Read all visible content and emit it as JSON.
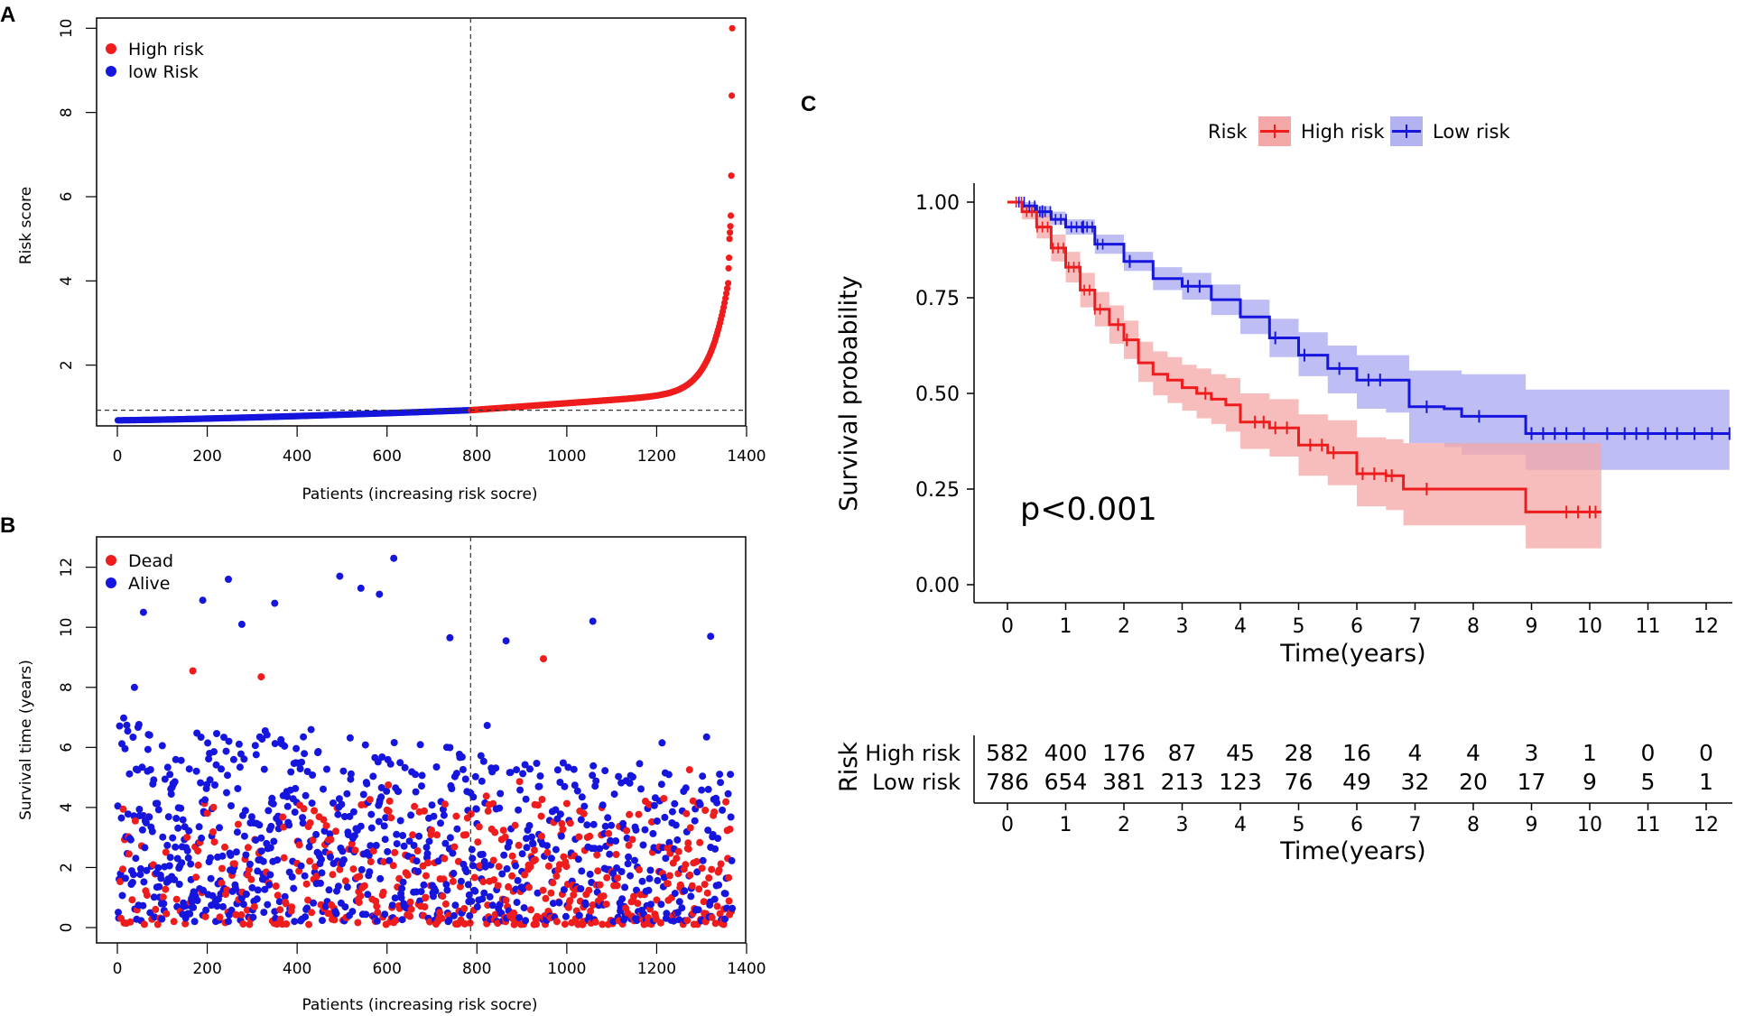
{
  "colors": {
    "high": "#ee1c1c",
    "low": "#1515dd",
    "high_band": "#f4a7a7",
    "low_band": "#b3b3f2"
  },
  "chart_data": [
    {
      "panel": "A",
      "type": "scatter",
      "xlabel": "Patients (increasing risk socre)",
      "ylabel": "Risk score",
      "xlim": [
        0,
        1400
      ],
      "ylim": [
        0.6,
        10.2
      ],
      "xticks": [
        "0",
        "200",
        "400",
        "600",
        "800",
        "1000",
        "1200",
        "1400"
      ],
      "yticks": [
        "2",
        "4",
        "6",
        "8",
        "10"
      ],
      "cutoff_x": 786,
      "cutoff_y": 0.93,
      "legend_position": "top-left",
      "legend": [
        "High risk",
        "low Risk"
      ],
      "series": [
        {
          "name": "low Risk",
          "n": 786,
          "range": [
            0.69,
            0.93
          ]
        },
        {
          "name": "High risk",
          "n": 582,
          "range": [
            0.93,
            10.0
          ]
        }
      ],
      "top_values": [
        10.0,
        8.4,
        6.5,
        5.55,
        5.3,
        5.15,
        5.0,
        4.55,
        4.3
      ]
    },
    {
      "panel": "B",
      "type": "scatter",
      "xlabel": "Patients (increasing risk socre)",
      "ylabel": "Survival time (years)",
      "xlim": [
        0,
        1400
      ],
      "ylim": [
        0,
        12.5
      ],
      "xticks": [
        "0",
        "200",
        "400",
        "600",
        "800",
        "1000",
        "1200",
        "1400"
      ],
      "yticks": [
        "0",
        "2",
        "4",
        "6",
        "8",
        "10",
        "12"
      ],
      "cutoff_x": 786,
      "legend_position": "top-left",
      "legend": [
        "Dead",
        "Alive"
      ],
      "n_patients": 1368,
      "notable_points": [
        {
          "x": 615,
          "y": 12.3,
          "status": "Alive"
        },
        {
          "x": 495,
          "y": 11.7,
          "status": "Alive"
        },
        {
          "x": 247,
          "y": 11.6,
          "status": "Alive"
        },
        {
          "x": 542,
          "y": 11.3,
          "status": "Alive"
        },
        {
          "x": 583,
          "y": 11.1,
          "status": "Alive"
        },
        {
          "x": 190,
          "y": 10.9,
          "status": "Alive"
        },
        {
          "x": 350,
          "y": 10.8,
          "status": "Alive"
        },
        {
          "x": 58,
          "y": 10.5,
          "status": "Alive"
        },
        {
          "x": 1058,
          "y": 10.2,
          "status": "Alive"
        },
        {
          "x": 277,
          "y": 10.1,
          "status": "Alive"
        },
        {
          "x": 948,
          "y": 8.95,
          "status": "Dead"
        },
        {
          "x": 320,
          "y": 8.35,
          "status": "Dead"
        },
        {
          "x": 168,
          "y": 8.55,
          "status": "Dead"
        },
        {
          "x": 1320,
          "y": 9.7,
          "status": "Alive"
        },
        {
          "x": 740,
          "y": 9.65,
          "status": "Alive"
        },
        {
          "x": 865,
          "y": 9.55,
          "status": "Alive"
        }
      ]
    },
    {
      "panel": "C",
      "type": "line",
      "subtype": "kaplan-meier",
      "title": "",
      "xlabel": "Time(years)",
      "ylabel": "Survival probability",
      "xlim": [
        0,
        12.5
      ],
      "ylim": [
        0,
        1
      ],
      "xticks": [
        "0",
        "1",
        "2",
        "3",
        "4",
        "5",
        "6",
        "7",
        "8",
        "9",
        "10",
        "11",
        "12"
      ],
      "yticks": [
        "0.00",
        "0.25",
        "0.50",
        "0.75",
        "1.00"
      ],
      "legend_title": "Risk",
      "legend_position": "top",
      "annotation": "p<0.001",
      "series": [
        {
          "name": "High risk",
          "x": [
            0,
            0.25,
            0.5,
            0.75,
            1,
            1.25,
            1.5,
            1.75,
            2,
            2.25,
            2.5,
            2.75,
            3,
            3.25,
            3.5,
            3.75,
            4,
            4.5,
            5,
            5.5,
            6,
            6.5,
            6.8,
            7,
            7.5,
            8,
            8.5,
            8.9,
            9.5,
            10,
            10.2
          ],
          "y": [
            1.0,
            0.975,
            0.935,
            0.88,
            0.83,
            0.77,
            0.72,
            0.68,
            0.64,
            0.58,
            0.55,
            0.535,
            0.515,
            0.5,
            0.485,
            0.47,
            0.425,
            0.41,
            0.365,
            0.345,
            0.29,
            0.285,
            0.25,
            0.25,
            0.25,
            0.25,
            0.25,
            0.19,
            0.19,
            0.19,
            0.19
          ],
          "lower": [
            1.0,
            0.955,
            0.905,
            0.845,
            0.79,
            0.725,
            0.675,
            0.63,
            0.59,
            0.53,
            0.495,
            0.475,
            0.455,
            0.435,
            0.42,
            0.4,
            0.355,
            0.335,
            0.285,
            0.26,
            0.205,
            0.195,
            0.155,
            0.155,
            0.155,
            0.155,
            0.155,
            0.095,
            0.095,
            0.095,
            0.095
          ],
          "upper": [
            1.0,
            0.99,
            0.965,
            0.915,
            0.87,
            0.815,
            0.765,
            0.73,
            0.69,
            0.635,
            0.61,
            0.595,
            0.575,
            0.565,
            0.55,
            0.54,
            0.5,
            0.485,
            0.445,
            0.43,
            0.385,
            0.38,
            0.37,
            0.37,
            0.37,
            0.37,
            0.37,
            0.37,
            0.37,
            0.37,
            0.37
          ]
        },
        {
          "name": "Low risk",
          "x": [
            0,
            0.25,
            0.5,
            0.75,
            1,
            1.5,
            2,
            2.5,
            3,
            3.5,
            4,
            4.5,
            5,
            5.5,
            6,
            6.5,
            6.9,
            7.5,
            7.8,
            8.5,
            8.9,
            9.5,
            10,
            11,
            12,
            12.4
          ],
          "y": [
            1.0,
            0.99,
            0.975,
            0.955,
            0.935,
            0.89,
            0.845,
            0.8,
            0.78,
            0.745,
            0.7,
            0.645,
            0.6,
            0.565,
            0.535,
            0.535,
            0.465,
            0.46,
            0.44,
            0.44,
            0.395,
            0.395,
            0.395,
            0.395,
            0.395,
            0.395
          ],
          "lower": [
            1.0,
            0.98,
            0.96,
            0.94,
            0.915,
            0.865,
            0.82,
            0.77,
            0.745,
            0.705,
            0.655,
            0.595,
            0.545,
            0.5,
            0.46,
            0.45,
            0.37,
            0.36,
            0.34,
            0.34,
            0.3,
            0.3,
            0.3,
            0.3,
            0.3,
            0.3
          ],
          "upper": [
            1.0,
            1.0,
            0.99,
            0.975,
            0.955,
            0.915,
            0.87,
            0.83,
            0.815,
            0.785,
            0.745,
            0.695,
            0.66,
            0.625,
            0.6,
            0.6,
            0.56,
            0.56,
            0.55,
            0.55,
            0.51,
            0.51,
            0.51,
            0.51,
            0.51,
            0.51
          ]
        }
      ],
      "censor_marks": {
        "High risk": [
          1.9,
          2.05,
          3.4,
          4.25,
          4.4,
          4.6,
          4.8,
          5.2,
          5.4,
          5.6,
          6.1,
          6.3,
          6.5,
          6.6,
          7.2,
          9.6,
          9.8,
          10.0,
          10.1
        ],
        "Low risk": [
          0.6,
          1.3,
          2.1,
          3.1,
          3.3,
          4.6,
          5.1,
          5.7,
          6.2,
          6.4,
          7.2,
          8.1,
          9.0,
          9.2,
          9.4,
          9.6,
          9.9,
          10.3,
          10.6,
          10.8,
          11.0,
          11.3,
          11.5,
          11.8,
          12.1,
          12.4
        ]
      }
    },
    {
      "panel": "C-table",
      "type": "table",
      "ylabel": "Risk",
      "xlabel": "Time(years)",
      "times": [
        "0",
        "1",
        "2",
        "3",
        "4",
        "5",
        "6",
        "7",
        "8",
        "9",
        "10",
        "11",
        "12"
      ],
      "rows": [
        {
          "name": "High risk",
          "values": [
            "582",
            "400",
            "176",
            "87",
            "45",
            "28",
            "16",
            "4",
            "4",
            "3",
            "1",
            "0",
            "0"
          ]
        },
        {
          "name": "Low risk",
          "values": [
            "786",
            "654",
            "381",
            "213",
            "123",
            "76",
            "49",
            "32",
            "20",
            "17",
            "9",
            "5",
            "1"
          ]
        }
      ]
    }
  ],
  "panel_labels": [
    "A",
    "B",
    "C"
  ]
}
